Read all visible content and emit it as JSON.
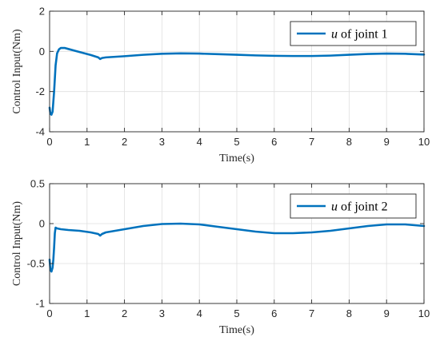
{
  "chart_data": [
    {
      "type": "line",
      "xlabel": "Time(s)",
      "ylabel": "Control Input(Nm)",
      "xlim": [
        0,
        10
      ],
      "ylim": [
        -4,
        2
      ],
      "xticks": [
        "0",
        "1",
        "2",
        "3",
        "4",
        "5",
        "6",
        "7",
        "8",
        "9",
        "10"
      ],
      "yticks": [
        "-4",
        "-2",
        "0",
        "2"
      ],
      "grid": true,
      "legend_position": "top-right",
      "series": [
        {
          "legend_var": "u",
          "legend_rest": "of joint 1",
          "color": "#0072BD",
          "x": [
            0,
            0.02,
            0.05,
            0.08,
            0.12,
            0.16,
            0.2,
            0.25,
            0.3,
            0.4,
            0.5,
            0.7,
            0.9,
            1.1,
            1.3,
            1.35,
            1.4,
            1.5,
            2.0,
            2.5,
            3.0,
            3.5,
            4.0,
            4.5,
            5.0,
            5.5,
            6.0,
            6.5,
            7.0,
            7.5,
            8.0,
            8.5,
            9.0,
            9.5,
            10.0
          ],
          "y": [
            -2.8,
            -3.1,
            -3.15,
            -3.0,
            -2.0,
            -0.7,
            -0.1,
            0.1,
            0.17,
            0.17,
            0.12,
            0.02,
            -0.08,
            -0.18,
            -0.3,
            -0.38,
            -0.33,
            -0.3,
            -0.24,
            -0.17,
            -0.12,
            -0.1,
            -0.11,
            -0.14,
            -0.17,
            -0.2,
            -0.22,
            -0.23,
            -0.23,
            -0.21,
            -0.17,
            -0.13,
            -0.11,
            -0.12,
            -0.16
          ]
        }
      ]
    },
    {
      "type": "line",
      "xlabel": "Time(s)",
      "ylabel": "Control Input(Nm)",
      "xlim": [
        0,
        10
      ],
      "ylim": [
        -1,
        0.5
      ],
      "xticks": [
        "0",
        "1",
        "2",
        "3",
        "4",
        "5",
        "6",
        "7",
        "8",
        "9",
        "10"
      ],
      "yticks": [
        "-1",
        "-0.5",
        "0",
        "0.5"
      ],
      "grid": true,
      "legend_position": "top-right",
      "series": [
        {
          "legend_var": "u",
          "legend_rest": "of joint 2",
          "color": "#0072BD",
          "x": [
            0,
            0.02,
            0.05,
            0.08,
            0.1,
            0.12,
            0.14,
            0.16,
            0.2,
            0.3,
            0.5,
            0.8,
            1.1,
            1.3,
            1.35,
            1.4,
            1.5,
            2.0,
            2.5,
            3.0,
            3.5,
            4.0,
            4.5,
            5.0,
            5.5,
            6.0,
            6.5,
            7.0,
            7.5,
            8.0,
            8.5,
            9.0,
            9.5,
            10.0
          ],
          "y": [
            -0.45,
            -0.58,
            -0.6,
            -0.55,
            -0.45,
            -0.3,
            -0.12,
            -0.05,
            -0.06,
            -0.07,
            -0.08,
            -0.09,
            -0.11,
            -0.13,
            -0.15,
            -0.13,
            -0.11,
            -0.07,
            -0.03,
            -0.005,
            0,
            -0.01,
            -0.04,
            -0.07,
            -0.1,
            -0.12,
            -0.12,
            -0.11,
            -0.09,
            -0.06,
            -0.03,
            -0.01,
            -0.01,
            -0.03
          ]
        }
      ]
    }
  ]
}
